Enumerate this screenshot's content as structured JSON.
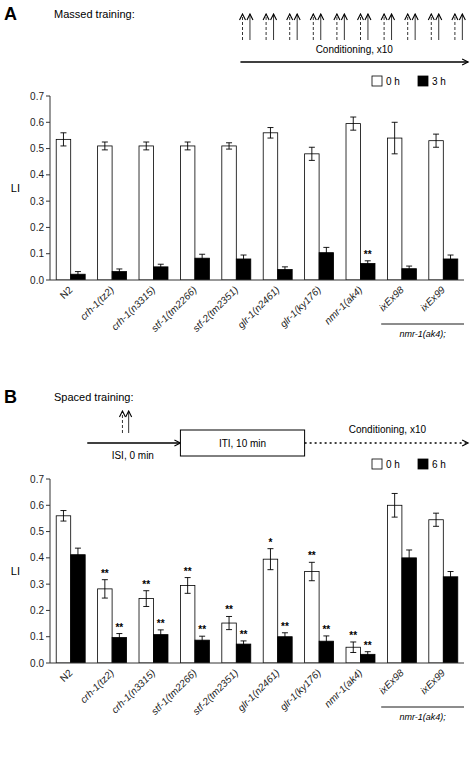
{
  "chart_data": [
    {
      "type": "bar",
      "panel_label": "A",
      "title": "Massed training:",
      "categories": [
        "N2",
        "crh-1(tz2)",
        "crh-1(n3315)",
        "stf-1(tm2266)",
        "stf-2(tm2351)",
        "glr-1(n2461)",
        "glr-1(ky176)",
        "nmr-1(ak4)",
        "ixEx98",
        "ixEx99"
      ],
      "series": [
        {
          "name": "0 h",
          "color": "#ffffff",
          "values": [
            0.535,
            0.51,
            0.51,
            0.51,
            0.51,
            0.56,
            0.48,
            0.595,
            0.54,
            0.53
          ],
          "errors": [
            0.025,
            0.015,
            0.015,
            0.015,
            0.012,
            0.02,
            0.025,
            0.025,
            0.06,
            0.025
          ],
          "significance": [
            null,
            null,
            null,
            null,
            null,
            null,
            null,
            null,
            null,
            null
          ]
        },
        {
          "name": "3 h",
          "color": "#000000",
          "values": [
            0.022,
            0.032,
            0.05,
            0.083,
            0.08,
            0.04,
            0.104,
            0.063,
            0.043,
            0.08
          ],
          "errors": [
            0.01,
            0.01,
            0.01,
            0.015,
            0.015,
            0.01,
            0.02,
            0.01,
            0.01,
            0.015
          ],
          "significance": [
            null,
            null,
            null,
            null,
            null,
            null,
            null,
            "**",
            null,
            null
          ]
        }
      ],
      "y_label": "LI",
      "ylim": [
        0,
        0.7
      ],
      "yticks": [
        {
          "value": 0,
          "label": "0.0"
        },
        0.1,
        0.2,
        0.3,
        0.4,
        0.5,
        0.6,
        0.7
      ],
      "legend": "upper right",
      "annotations": {
        "conditioning": "Conditioning, x10",
        "group": "nmr-1(ak4);"
      }
    },
    {
      "type": "bar",
      "panel_label": "B",
      "title": "Spaced training:",
      "categories": [
        "N2",
        "crh-1(tz2)",
        "crh-1(n3315)",
        "stf-1(tm2266)",
        "stf-2(tm2351)",
        "glr-1(n2461)",
        "glr-1(ky176)",
        "nmr-1(ak4)",
        "ixEx98",
        "ixEx99"
      ],
      "series": [
        {
          "name": "0 h",
          "color": "#ffffff",
          "values": [
            0.56,
            0.282,
            0.245,
            0.295,
            0.152,
            0.395,
            0.348,
            0.06,
            0.6,
            0.545
          ],
          "errors": [
            0.02,
            0.035,
            0.03,
            0.03,
            0.025,
            0.04,
            0.035,
            0.02,
            0.045,
            0.025
          ],
          "significance": [
            null,
            "**",
            "**",
            "**",
            "**",
            "*",
            "**",
            "**",
            null,
            null
          ]
        },
        {
          "name": "6 h",
          "color": "#000000",
          "values": [
            0.412,
            0.097,
            0.108,
            0.087,
            0.072,
            0.1,
            0.083,
            0.033,
            0.4,
            0.328
          ],
          "errors": [
            0.025,
            0.015,
            0.018,
            0.015,
            0.012,
            0.015,
            0.02,
            0.01,
            0.03,
            0.02
          ],
          "significance": [
            null,
            "**",
            "**",
            "**",
            "**",
            "**",
            "**",
            "**",
            null,
            null
          ]
        }
      ],
      "y_label": "LI",
      "ylim": [
        0,
        0.7
      ],
      "yticks": [
        {
          "value": 0,
          "label": "0.0"
        },
        0.1,
        0.2,
        0.3,
        0.4,
        0.5,
        0.6,
        0.7
      ],
      "legend": "upper right",
      "annotations": {
        "isi": "ISI, 0 min",
        "iti": "ITI, 10 min",
        "conditioning": "Conditioning, x10",
        "group": "nmr-1(ak4);"
      }
    }
  ]
}
